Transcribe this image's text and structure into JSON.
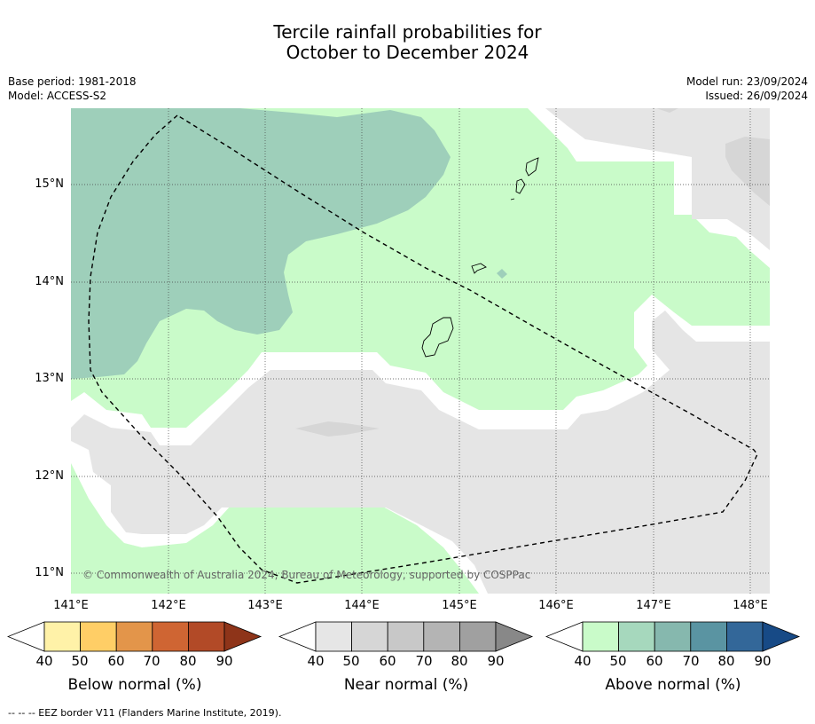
{
  "title_line1": "Tercile rainfall probabilities for",
  "title_line2": "October to December 2024",
  "meta_left": {
    "base_period": "Base period: 1981-2018",
    "model": "Model: ACCESS-S2"
  },
  "meta_right": {
    "model_run": "Model run: 23/09/2024",
    "issued": "Issued: 26/09/2024"
  },
  "lat_labels": [
    "15°N",
    "14°N",
    "13°N",
    "12°N",
    "11°N"
  ],
  "lon_labels": [
    "141°E",
    "142°E",
    "143°E",
    "144°E",
    "145°E",
    "146°E",
    "147°E",
    "148°E"
  ],
  "copyright": "© Commonwealth of Australia 2024, Bureau of Meteorology, supported by COSPPac",
  "colorbars": [
    {
      "label": "Below normal (%)",
      "ticks": [
        "40",
        "50",
        "60",
        "70",
        "80",
        "90"
      ],
      "colors": [
        "#fff2a8",
        "#ffce66",
        "#e3954a",
        "#cf6533",
        "#b24a27",
        "#8e3419"
      ]
    },
    {
      "label": "Near normal (%)",
      "ticks": [
        "40",
        "50",
        "60",
        "70",
        "80",
        "90"
      ],
      "colors": [
        "#e6e6e6",
        "#d6d6d6",
        "#c8c8c8",
        "#b4b4b4",
        "#a0a0a0",
        "#888888"
      ]
    },
    {
      "label": "Above normal (%)",
      "ticks": [
        "40",
        "50",
        "60",
        "70",
        "80",
        "90"
      ],
      "colors": [
        "#c9fbc9",
        "#a6d8bd",
        "#86b8ae",
        "#5a94a2",
        "#336799",
        "#174a86"
      ]
    }
  ],
  "footer": "--  --  -- EEZ border V11 (Flanders Marine Institute, 2019).",
  "colors": {
    "above_40": "#c9fbc9",
    "above_50": "#9ecfba",
    "near_40": "#e5e5e5",
    "near_50": "#d6d6d6",
    "neutral": "#ffffff"
  }
}
